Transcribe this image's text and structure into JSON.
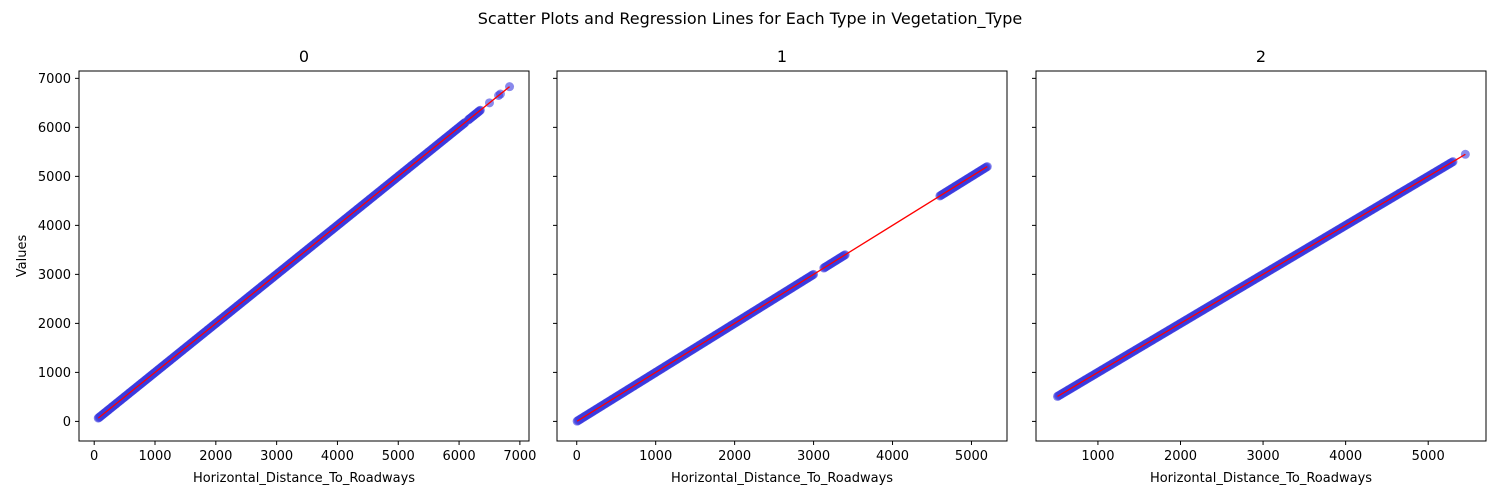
{
  "figure": {
    "suptitle": "Scatter Plots and Regression Lines for Each Type in Vegetation_Type"
  },
  "chart_data": [
    {
      "type": "scatter",
      "title": "0",
      "xlabel": "Horizontal_Distance_To_Roadways",
      "ylabel": "Values",
      "xlim": [
        -250,
        7150
      ],
      "ylim": [
        -400,
        7150
      ],
      "xticks": [
        0,
        1000,
        2000,
        3000,
        4000,
        5000,
        6000,
        7000
      ],
      "yticks": [
        0,
        1000,
        2000,
        3000,
        4000,
        5000,
        6000,
        7000
      ],
      "segments": [
        [
          67,
          6100
        ],
        [
          6150,
          6350
        ]
      ],
      "outliers": [
        6500,
        6650,
        6680,
        6830
      ],
      "regression": [
        [
          67,
          67
        ],
        [
          6830,
          6830
        ]
      ],
      "point_color": "#3b3be0",
      "line_color": "#ff0000"
    },
    {
      "type": "scatter",
      "title": "1",
      "xlabel": "Horizontal_Distance_To_Roadways",
      "ylabel": "",
      "xlim": [
        -250,
        7150
      ],
      "ylim": [
        -400,
        7150
      ],
      "xticks": [
        0,
        1000,
        2000,
        3000,
        4000,
        5000
      ],
      "xlim_local": [
        -250,
        5450
      ],
      "yticks": [
        0,
        1000,
        2000,
        3000,
        4000,
        5000,
        6000,
        7000
      ],
      "segments": [
        [
          5,
          3000
        ],
        [
          3130,
          3400
        ],
        [
          4600,
          5200
        ]
      ],
      "outliers": [],
      "regression": [
        [
          5,
          5
        ],
        [
          5200,
          5200
        ]
      ],
      "point_color": "#3b3be0",
      "line_color": "#ff0000"
    },
    {
      "type": "scatter",
      "title": "2",
      "xlabel": "Horizontal_Distance_To_Roadways",
      "ylabel": "",
      "xlim_local": [
        250,
        5700
      ],
      "ylim": [
        -400,
        7150
      ],
      "xticks": [
        1000,
        2000,
        3000,
        4000,
        5000
      ],
      "yticks": [
        0,
        1000,
        2000,
        3000,
        4000,
        5000,
        6000,
        7000
      ],
      "segments": [
        [
          510,
          5300
        ]
      ],
      "outliers": [
        5450
      ],
      "regression": [
        [
          510,
          510
        ],
        [
          5450,
          5450
        ]
      ],
      "point_color": "#3b3be0",
      "line_color": "#ff0000"
    }
  ]
}
